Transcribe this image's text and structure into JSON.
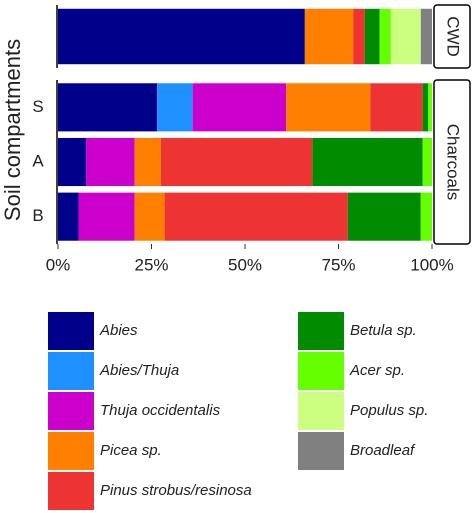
{
  "chart_data": [
    {
      "type": "bar",
      "orientation": "horizontal",
      "stacked": true,
      "panel_label": "CWD",
      "ylabel": "Soil compartments",
      "categories": [
        null
      ],
      "series": [
        {
          "name": "Abies",
          "color": "#00008b",
          "values": [
            66
          ]
        },
        {
          "name": "Abies/Thuja",
          "color": "#1e90ff",
          "values": [
            0
          ]
        },
        {
          "name": "Thuja occidentalis",
          "color": "#cc00cc",
          "values": [
            0
          ]
        },
        {
          "name": "Picea sp.",
          "color": "#ff8000",
          "values": [
            13
          ]
        },
        {
          "name": "Pinus strobus/resinosa",
          "color": "#ee3333",
          "values": [
            3
          ]
        },
        {
          "name": "Betula sp.",
          "color": "#008b00",
          "values": [
            4
          ]
        },
        {
          "name": "Acer sp.",
          "color": "#66ff00",
          "values": [
            3
          ]
        },
        {
          "name": "Populus sp.",
          "color": "#ccff80",
          "values": [
            8
          ]
        },
        {
          "name": "Broadleaf",
          "color": "#808080",
          "values": [
            3
          ]
        }
      ],
      "xlim": [
        0,
        100
      ]
    },
    {
      "type": "bar",
      "orientation": "horizontal",
      "stacked": true,
      "panel_label": "Charcoals",
      "categories": [
        "S",
        "A",
        "B"
      ],
      "series": [
        {
          "name": "Abies",
          "color": "#00008b",
          "values": [
            26.5,
            7.5,
            5.5
          ]
        },
        {
          "name": "Abies/Thuja",
          "color": "#1e90ff",
          "values": [
            9.5,
            0,
            0
          ]
        },
        {
          "name": "Thuja occidentalis",
          "color": "#cc00cc",
          "values": [
            25,
            13,
            15
          ]
        },
        {
          "name": "Picea sp.",
          "color": "#ff8000",
          "values": [
            22.5,
            7,
            8
          ]
        },
        {
          "name": "Pinus strobus/resinosa",
          "color": "#ee3333",
          "values": [
            14,
            40.5,
            49
          ]
        },
        {
          "name": "Betula sp.",
          "color": "#008b00",
          "values": [
            1.5,
            29.5,
            19.5
          ]
        },
        {
          "name": "Acer sp.",
          "color": "#66ff00",
          "values": [
            1,
            2.5,
            3
          ]
        },
        {
          "name": "Populus sp.",
          "color": "#ccff80",
          "values": [
            0,
            0,
            0
          ]
        },
        {
          "name": "Broadleaf",
          "color": "#808080",
          "values": [
            0,
            0,
            0
          ]
        }
      ],
      "xlim": [
        0,
        100
      ],
      "xticks": [
        {
          "value": 0,
          "label": "0%"
        },
        {
          "value": 25,
          "label": "25%"
        },
        {
          "value": 50,
          "label": "50%"
        },
        {
          "value": 75,
          "label": "75%"
        },
        {
          "value": 100,
          "label": "100%"
        }
      ]
    }
  ]
}
